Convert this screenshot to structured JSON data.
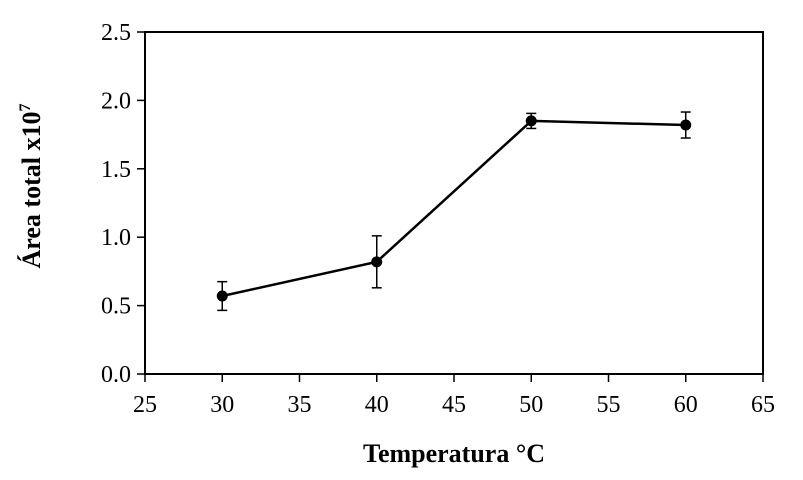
{
  "chart_data": {
    "type": "line",
    "xlabel": "Temperatura °C",
    "ylabel": "Área total x10",
    "ylabel_superscript": "7",
    "xlim": [
      25,
      65
    ],
    "ylim": [
      0.0,
      2.5
    ],
    "x_ticks": [
      "25",
      "30",
      "35",
      "40",
      "45",
      "50",
      "55",
      "60",
      "65"
    ],
    "y_ticks": [
      "0.0",
      "0.5",
      "1.0",
      "1.5",
      "2.0",
      "2.5"
    ],
    "grid": false,
    "legend": "none",
    "series": [
      {
        "x": [
          30,
          40,
          50,
          60
        ],
        "y": [
          0.57,
          0.82,
          1.85,
          1.82
        ],
        "y_error": [
          0.105,
          0.19,
          0.055,
          0.095
        ],
        "color": "#000000",
        "marker": "circle"
      }
    ]
  }
}
